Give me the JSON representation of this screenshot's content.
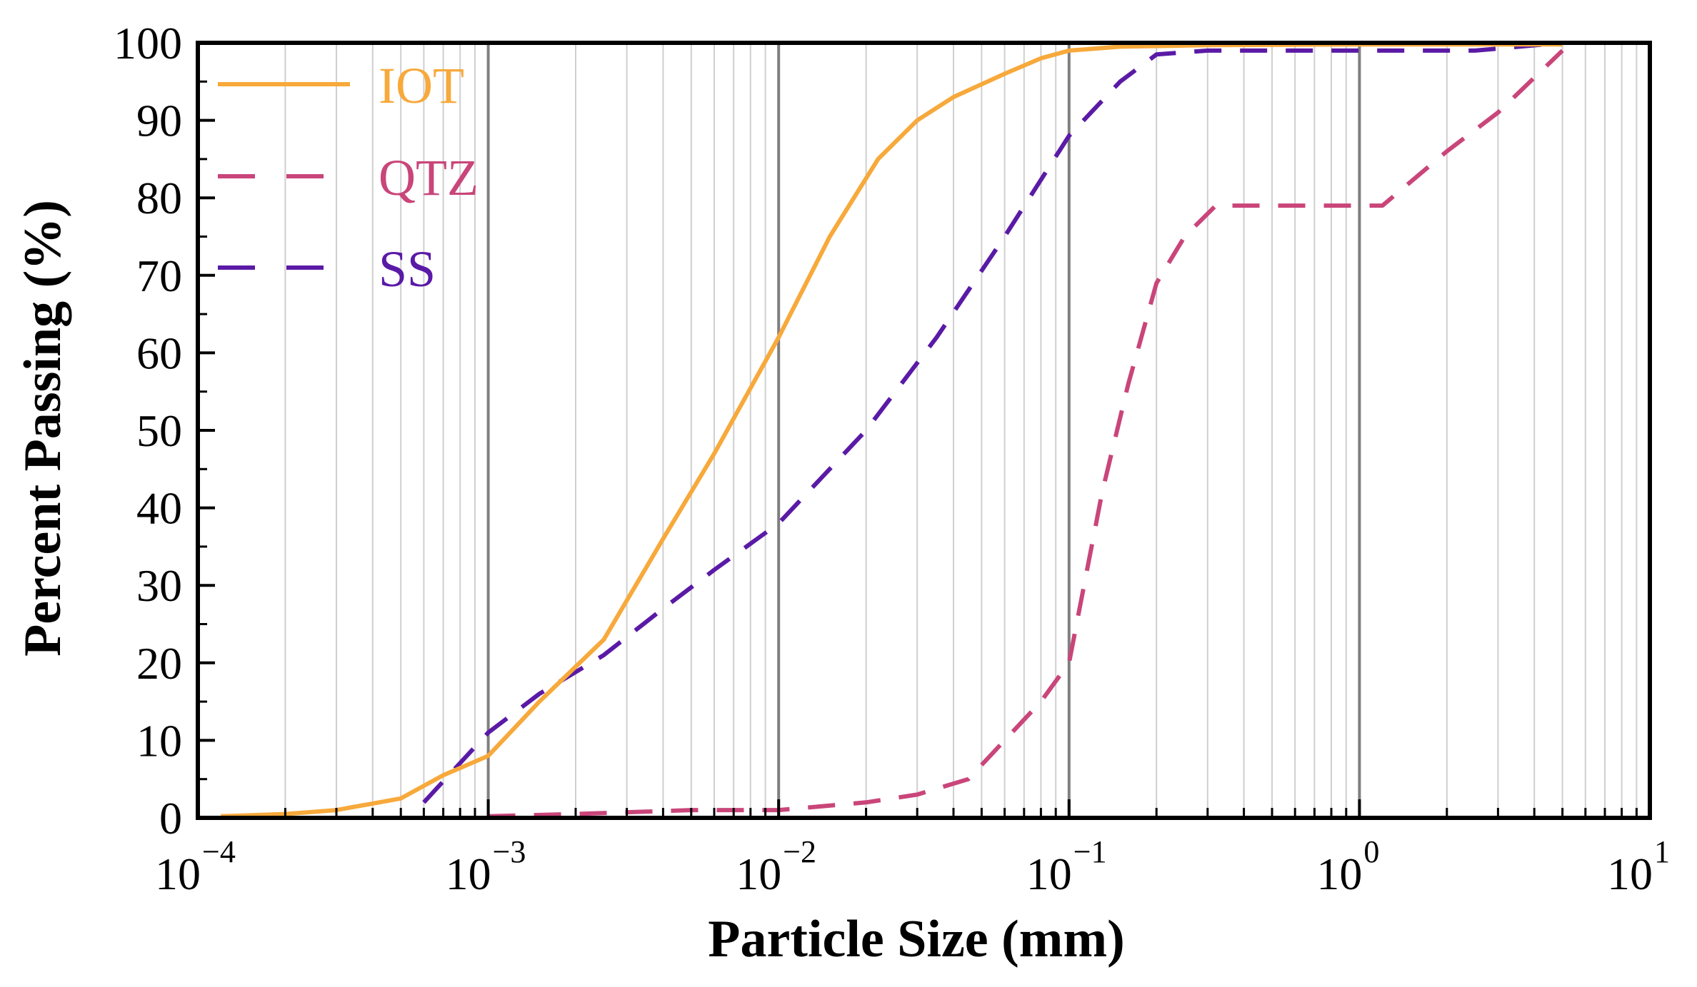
{
  "chart_data": {
    "type": "line",
    "title": "",
    "xlabel": "Particle Size (mm)",
    "ylabel": "Percent Passing (%)",
    "x_scale": "log",
    "xlim": [
      0.0001,
      10
    ],
    "ylim": [
      0,
      100
    ],
    "x_ticks": [
      {
        "value": 0.0001,
        "base": "10",
        "exp": "−4"
      },
      {
        "value": 0.001,
        "base": "10",
        "exp": "−3"
      },
      {
        "value": 0.01,
        "base": "10",
        "exp": "−2"
      },
      {
        "value": 0.1,
        "base": "10",
        "exp": "−1"
      },
      {
        "value": 1,
        "base": "10",
        "exp": "0"
      },
      {
        "value": 10,
        "base": "10",
        "exp": "1"
      }
    ],
    "y_ticks": [
      "0",
      "10",
      "20",
      "30",
      "40",
      "50",
      "60",
      "70",
      "80",
      "90",
      "100"
    ],
    "grid": true,
    "legend_position": "top-left",
    "series": [
      {
        "name": "IOT",
        "color": "#F7A93B",
        "dash": "solid",
        "x": [
          0.00012,
          0.0002,
          0.0003,
          0.0005,
          0.0007,
          0.001,
          0.0015,
          0.0025,
          0.004,
          0.006,
          0.01,
          0.015,
          0.022,
          0.03,
          0.04,
          0.06,
          0.08,
          0.1,
          0.15,
          0.3,
          1,
          5
        ],
        "y": [
          0.2,
          0.5,
          1,
          2.5,
          5.5,
          8,
          15,
          23,
          36,
          47,
          62,
          75,
          85,
          90,
          93,
          96,
          98,
          99,
          99.5,
          99.7,
          99.8,
          99.8
        ]
      },
      {
        "name": "QTZ",
        "color": "#C9457A",
        "dash": "dashed",
        "x": [
          0.001,
          0.002,
          0.005,
          0.01,
          0.02,
          0.03,
          0.045,
          0.06,
          0.08,
          0.1,
          0.11,
          0.13,
          0.16,
          0.2,
          0.25,
          0.32,
          0.5,
          1.2,
          2,
          3,
          5
        ],
        "y": [
          0.2,
          0.5,
          1,
          1,
          2,
          3,
          5,
          10,
          15,
          20,
          28,
          42,
          56,
          69,
          75,
          79,
          79,
          79,
          86,
          91,
          99
        ]
      },
      {
        "name": "SS",
        "color": "#5A1AA6",
        "dash": "dashed",
        "x": [
          0.0006,
          0.001,
          0.0015,
          0.0025,
          0.004,
          0.006,
          0.01,
          0.02,
          0.035,
          0.06,
          0.1,
          0.15,
          0.2,
          0.3,
          1,
          2.5,
          5
        ],
        "y": [
          2,
          11,
          16,
          21,
          27,
          32,
          38,
          50,
          62,
          75,
          88,
          95,
          98.5,
          99,
          99,
          99,
          100
        ]
      }
    ]
  }
}
